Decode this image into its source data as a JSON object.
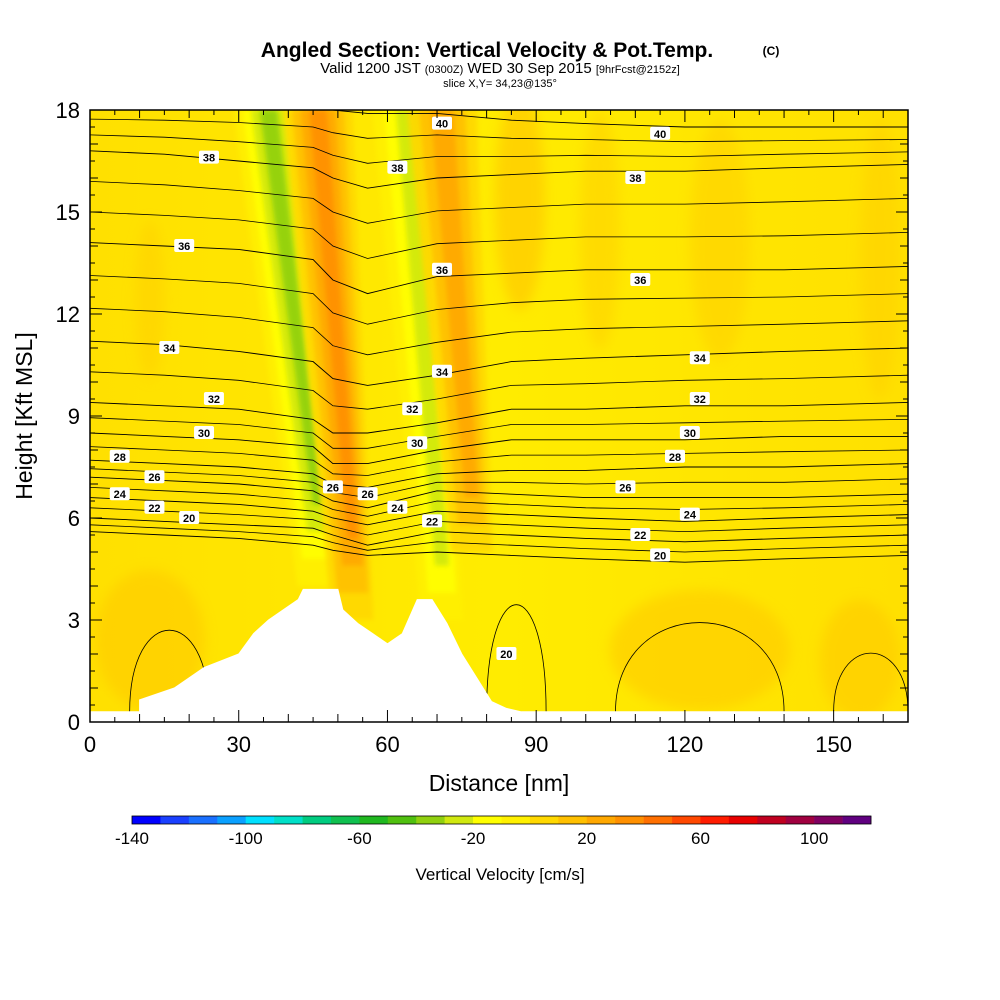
{
  "chart_data": {
    "type": "heatmap",
    "title": "Angled Section: Vertical Velocity & Pot.Temp.",
    "title_unit": "(C)",
    "subtitle_parts": [
      "Valid 1200 JST",
      "(0300Z)",
      "WED 30 Sep 2015",
      "[9hrFcst@2152z]"
    ],
    "slice_label": "slice X,Y= 34,23@135°",
    "xlabel": "Distance [nm]",
    "ylabel": "Height [Kft MSL]",
    "xlim": [
      0,
      165
    ],
    "ylim": [
      0,
      18
    ],
    "xticks": [
      0,
      30,
      60,
      90,
      120,
      150
    ],
    "yticks": [
      0,
      3,
      6,
      9,
      12,
      15,
      18
    ],
    "grid": false,
    "colorbar": {
      "title": "Vertical Velocity [cm/s]",
      "range": [
        -140,
        120
      ],
      "step": 10,
      "labels": [
        -140,
        -100,
        -60,
        -20,
        20,
        60,
        100
      ],
      "colors": [
        "#0000ff",
        "#1a40ff",
        "#1a70ff",
        "#0aa0ff",
        "#00e0ff",
        "#00e0c8",
        "#00cc80",
        "#10c050",
        "#20b820",
        "#50c010",
        "#90d010",
        "#d0e810",
        "#ffff00",
        "#fff000",
        "#ffd800",
        "#ffc000",
        "#ffa800",
        "#ff9000",
        "#ff7000",
        "#ff4800",
        "#ff1c00",
        "#e80000",
        "#c00020",
        "#a00040",
        "#800060",
        "#600080"
      ]
    },
    "features": [
      {
        "name": "downdraft",
        "x_start": 46,
        "x_end": 36,
        "z_bottom": 4,
        "z_top": 18,
        "peak": -40
      },
      {
        "name": "updraft",
        "x_start": 53,
        "x_end": 46,
        "z_bottom": 3,
        "z_top": 18,
        "peak": 40
      },
      {
        "name": "downdraft",
        "x_start": 71,
        "x_end": 64,
        "z_bottom": 3,
        "z_top": 18,
        "peak": -30
      },
      {
        "name": "updraft",
        "x_start": 77,
        "x_end": 71,
        "z_bottom": 5,
        "z_top": 18,
        "peak": 30
      }
    ],
    "terrain": {
      "x": [
        0,
        10,
        10,
        17,
        20,
        23,
        30,
        33,
        36,
        39,
        42,
        43,
        50,
        51,
        54,
        57,
        60,
        63,
        66,
        69,
        72,
        75,
        78,
        81,
        84,
        87,
        90,
        165
      ],
      "z": [
        0.3,
        0.3,
        0.65,
        1.0,
        1.3,
        1.6,
        2.0,
        2.6,
        3.0,
        3.3,
        3.6,
        3.9,
        3.9,
        3.3,
        2.9,
        2.6,
        2.3,
        2.6,
        3.6,
        3.6,
        2.9,
        2.0,
        1.3,
        0.6,
        0.4,
        0.3,
        0.3,
        0.3
      ]
    },
    "contours": [
      {
        "level": 20,
        "label": "20",
        "x": [
          0,
          15,
          30,
          45,
          49,
          56,
          70,
          85,
          100,
          120,
          140,
          165
        ],
        "z": [
          5.6,
          5.5,
          5.4,
          5.2,
          5.05,
          4.9,
          5.0,
          4.9,
          4.8,
          4.7,
          4.8,
          4.9
        ]
      },
      {
        "level": 22,
        "label": "22",
        "x": [
          0,
          15,
          30,
          45,
          49,
          56,
          70,
          85,
          100,
          120,
          140,
          165
        ],
        "z": [
          6.0,
          5.9,
          5.8,
          5.7,
          5.5,
          5.2,
          5.6,
          5.5,
          5.4,
          5.3,
          5.4,
          5.5
        ]
      },
      {
        "level": 24,
        "label": "24",
        "x": [
          0,
          15,
          30,
          45,
          49,
          56,
          70,
          85,
          100,
          120,
          140,
          165
        ],
        "z": [
          6.6,
          6.5,
          6.4,
          6.2,
          6.0,
          5.8,
          6.2,
          6.1,
          6.0,
          5.9,
          6.0,
          6.1
        ]
      },
      {
        "level": 26,
        "label": "26",
        "x": [
          0,
          15,
          30,
          45,
          49,
          56,
          70,
          85,
          100,
          120,
          140,
          165
        ],
        "z": [
          7.2,
          7.1,
          7.0,
          6.8,
          6.5,
          6.3,
          6.8,
          6.7,
          6.6,
          6.6,
          6.6,
          6.7
        ]
      },
      {
        "level": 28,
        "label": "28",
        "x": [
          0,
          15,
          30,
          45,
          49,
          56,
          70,
          85,
          100,
          120,
          140,
          165
        ],
        "z": [
          7.7,
          7.6,
          7.5,
          7.3,
          7.0,
          6.9,
          7.3,
          7.4,
          7.4,
          7.5,
          7.5,
          7.6
        ]
      },
      {
        "level": 30,
        "label": "30",
        "x": [
          0,
          15,
          30,
          45,
          49,
          56,
          70,
          85,
          100,
          120,
          140,
          165
        ],
        "z": [
          8.5,
          8.4,
          8.3,
          8.1,
          7.6,
          7.6,
          8.0,
          8.3,
          8.3,
          8.3,
          8.4,
          8.4
        ]
      },
      {
        "level": 32,
        "label": "32",
        "x": [
          0,
          15,
          30,
          45,
          49,
          56,
          70,
          85,
          100,
          120,
          140,
          165
        ],
        "z": [
          9.4,
          9.3,
          9.2,
          8.9,
          8.5,
          8.5,
          8.8,
          9.2,
          9.2,
          9.3,
          9.3,
          9.4
        ]
      },
      {
        "level": 34,
        "label": "34",
        "x": [
          0,
          15,
          30,
          45,
          49,
          56,
          70,
          85,
          100,
          120,
          140,
          165
        ],
        "z": [
          11.2,
          11.1,
          10.9,
          10.6,
          10.1,
          9.9,
          10.2,
          10.6,
          10.7,
          10.8,
          10.9,
          11.0
        ]
      },
      {
        "level": 36,
        "label": "36",
        "x": [
          0,
          15,
          30,
          45,
          49,
          56,
          70,
          85,
          100,
          120,
          140,
          165
        ],
        "z": [
          14.1,
          14.0,
          13.9,
          13.6,
          13.0,
          12.6,
          13.1,
          13.2,
          13.3,
          13.3,
          13.3,
          13.4
        ]
      },
      {
        "level": 38,
        "label": "38",
        "x": [
          0,
          15,
          30,
          45,
          49,
          56,
          70,
          85,
          100,
          120,
          140,
          165
        ],
        "z": [
          16.8,
          16.7,
          16.5,
          16.3,
          16.0,
          15.7,
          16.0,
          16.1,
          16.2,
          16.2,
          16.3,
          16.4
        ]
      },
      {
        "level": 40,
        "label": "40",
        "x": [
          0,
          15,
          30,
          45,
          49,
          56,
          70,
          85,
          100,
          120,
          140,
          165
        ],
        "z": [
          18.2,
          18.2,
          18.2,
          18.1,
          18.0,
          17.9,
          17.9,
          17.7,
          17.6,
          17.5,
          17.5,
          17.5
        ]
      }
    ],
    "contour_labels": [
      {
        "level": 40,
        "x": 71,
        "z": 17.6
      },
      {
        "level": 40,
        "x": 115,
        "z": 17.3
      },
      {
        "level": 38,
        "x": 24,
        "z": 16.6
      },
      {
        "level": 38,
        "x": 62,
        "z": 16.3
      },
      {
        "level": 38,
        "x": 110,
        "z": 16.0
      },
      {
        "level": 36,
        "x": 19,
        "z": 14.0
      },
      {
        "level": 36,
        "x": 71,
        "z": 13.3
      },
      {
        "level": 36,
        "x": 111,
        "z": 13.0
      },
      {
        "level": 34,
        "x": 16,
        "z": 11.0
      },
      {
        "level": 34,
        "x": 71,
        "z": 10.3
      },
      {
        "level": 34,
        "x": 123,
        "z": 10.7
      },
      {
        "level": 32,
        "x": 25,
        "z": 9.5
      },
      {
        "level": 32,
        "x": 65,
        "z": 9.2
      },
      {
        "level": 32,
        "x": 123,
        "z": 9.5
      },
      {
        "level": 30,
        "x": 23,
        "z": 8.5
      },
      {
        "level": 30,
        "x": 66,
        "z": 8.2
      },
      {
        "level": 30,
        "x": 121,
        "z": 8.5
      },
      {
        "level": 28,
        "x": 6,
        "z": 7.8
      },
      {
        "level": 28,
        "x": 118,
        "z": 7.8
      },
      {
        "level": 26,
        "x": 13,
        "z": 7.2
      },
      {
        "level": 26,
        "x": 49,
        "z": 6.9
      },
      {
        "level": 26,
        "x": 56,
        "z": 6.7
      },
      {
        "level": 26,
        "x": 108,
        "z": 6.9
      },
      {
        "level": 24,
        "x": 6,
        "z": 6.7
      },
      {
        "level": 24,
        "x": 62,
        "z": 6.3
      },
      {
        "level": 24,
        "x": 121,
        "z": 6.1
      },
      {
        "level": 22,
        "x": 13,
        "z": 6.3
      },
      {
        "level": 22,
        "x": 69,
        "z": 5.9
      },
      {
        "level": 22,
        "x": 111,
        "z": 5.5
      },
      {
        "level": 20,
        "x": 20,
        "z": 6.0
      },
      {
        "level": 20,
        "x": 115,
        "z": 4.9
      },
      {
        "level": 20,
        "x": 84,
        "z": 2.0
      }
    ]
  }
}
